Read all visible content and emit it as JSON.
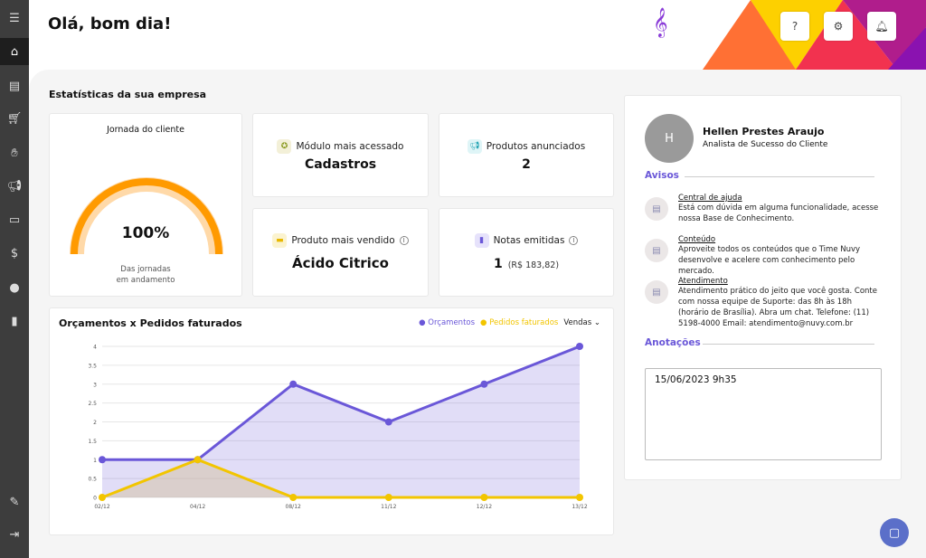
{
  "header": {
    "greeting": "Olá, bom dia!",
    "help_label": "?"
  },
  "sidebar": {
    "items": [
      "menu",
      "home",
      "new-document",
      "cart",
      "sales",
      "marketing",
      "billing",
      "finance",
      "contacts",
      "reports",
      "user-edit",
      "logout"
    ]
  },
  "stats": {
    "section_title": "Estatísticas da sua empresa",
    "journey": {
      "title": "Jornada do cliente",
      "value": "100%",
      "percent": 100,
      "caption_1": "Das jornadas",
      "caption_2": "em andamento"
    },
    "module": {
      "label": "Módulo mais acessado",
      "value": "Cadastros"
    },
    "products": {
      "label": "Produtos anunciados",
      "value": "2"
    },
    "best_seller": {
      "label": "Produto mais vendido",
      "value": "Ácido Citrico"
    },
    "invoices": {
      "label": "Notas emitidas",
      "value": "1",
      "amount": "(R$ 183,82)"
    }
  },
  "chart_data": {
    "type": "line",
    "title": "Orçamentos x Pedidos faturados",
    "categories": [
      "02/12",
      "04/12",
      "08/12",
      "11/12",
      "12/12",
      "13/12"
    ],
    "series": [
      {
        "name": "Orçamentos",
        "values": [
          1,
          1,
          3,
          2,
          3,
          4
        ],
        "color": "#6a57d8"
      },
      {
        "name": "Pedidos faturados",
        "values": [
          0,
          1,
          0,
          0,
          0,
          0
        ],
        "color": "#f2c500"
      }
    ],
    "yticks": [
      "0",
      "0.5",
      "1",
      "1.5",
      "2",
      "2.5",
      "3",
      "3.5",
      "4"
    ],
    "ylim": [
      0,
      4
    ],
    "grid": true,
    "legend": "top-right",
    "filter": "Vendas"
  },
  "profile": {
    "initial": "H",
    "name": "Hellen Prestes Araujo",
    "role": "Analista de Sucesso do Cliente"
  },
  "avisos": {
    "title": "Avisos",
    "items": [
      {
        "title": "Central de ajuda",
        "text": "Está com dúvida em alguma funcionalidade, acesse nossa Base de Conhecimento."
      },
      {
        "title": "Conteúdo",
        "text": "Aproveite todos os conteúdos que o Time Nuvy desenvolve e acelere com conhecimento pelo mercado."
      },
      {
        "title": "Atendimento",
        "text": "Atendimento prático do jeito que você gosta. Conte com nossa equipe de Suporte: das 8h às 18h (horário de Brasília). Abra um chat. Telefone: (11) 5198-4000 Email: atendimento@nuvy.com.br"
      }
    ]
  },
  "notes": {
    "title": "Anotações",
    "value": "15/06/2023 9h35"
  }
}
